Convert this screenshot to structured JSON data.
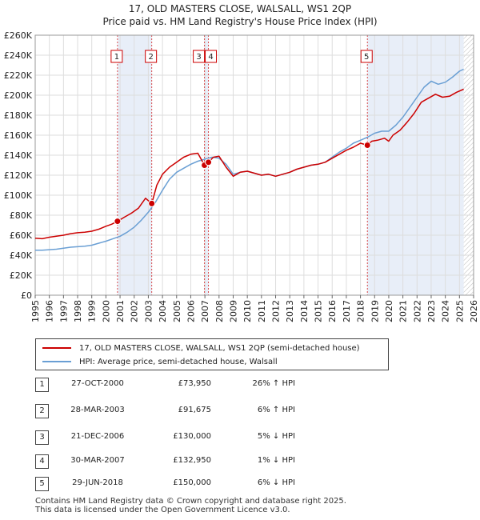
{
  "chart_data": {
    "type": "line",
    "title": "17, OLD MASTERS CLOSE, WALSALL, WS1 2QP",
    "subtitle": "Price paid vs. HM Land Registry's House Price Index (HPI)",
    "xlim": [
      1995,
      2026
    ],
    "ylim": [
      0,
      260000
    ],
    "x_ticks": [
      "1995",
      "1996",
      "1997",
      "1998",
      "1999",
      "2000",
      "2001",
      "2002",
      "2003",
      "2004",
      "2005",
      "2006",
      "2007",
      "2008",
      "2009",
      "2010",
      "2011",
      "2012",
      "2013",
      "2014",
      "2015",
      "2016",
      "2017",
      "2018",
      "2019",
      "2020",
      "2021",
      "2022",
      "2023",
      "2024",
      "2025",
      "2026"
    ],
    "y_ticks": [
      "£0",
      "£20K",
      "£40K",
      "£60K",
      "£80K",
      "£100K",
      "£120K",
      "£140K",
      "£160K",
      "£180K",
      "£200K",
      "£220K",
      "£240K",
      "£260K"
    ],
    "y_tick_values": [
      0,
      20000,
      40000,
      60000,
      80000,
      100000,
      120000,
      140000,
      160000,
      180000,
      200000,
      220000,
      240000,
      260000
    ],
    "grid": true,
    "legend_position": "bottom",
    "series": [
      {
        "name": "17, OLD MASTERS CLOSE, WALSALL, WS1 2QP (semi-detached house)",
        "color": "#cc0000",
        "x": [
          1995.0,
          1995.5,
          1996.0,
          1996.5,
          1997.0,
          1997.5,
          1998.0,
          1998.5,
          1999.0,
          1999.5,
          2000.0,
          2000.4,
          2000.82,
          2001.3,
          2001.8,
          2002.3,
          2002.8,
          2003.24,
          2003.6,
          2004.0,
          2004.5,
          2005.0,
          2005.5,
          2006.0,
          2006.5,
          2006.97,
          2007.25,
          2007.6,
          2008.0,
          2008.5,
          2009.0,
          2009.5,
          2010.0,
          2010.5,
          2011.0,
          2011.5,
          2012.0,
          2012.5,
          2013.0,
          2013.5,
          2014.0,
          2014.5,
          2015.0,
          2015.5,
          2016.0,
          2016.5,
          2017.0,
          2017.5,
          2018.0,
          2018.49,
          2018.8,
          2019.2,
          2019.7,
          2020.0,
          2020.3,
          2020.8,
          2021.3,
          2021.8,
          2022.3,
          2022.8,
          2023.3,
          2023.8,
          2024.3,
          2024.8,
          2025.3
        ],
        "values": [
          57000,
          56500,
          58000,
          59000,
          60000,
          61500,
          62500,
          63000,
          64000,
          66000,
          69000,
          71000,
          73950,
          78000,
          82000,
          87000,
          97000,
          91675,
          110000,
          121000,
          128000,
          133000,
          138000,
          141000,
          142000,
          130000,
          132950,
          138000,
          139000,
          128000,
          119000,
          123000,
          124000,
          122000,
          120000,
          121000,
          119000,
          121000,
          123000,
          126000,
          128000,
          130000,
          131000,
          133000,
          137000,
          141000,
          145000,
          148000,
          152000,
          150000,
          154000,
          155000,
          157000,
          154000,
          160000,
          165000,
          173000,
          182000,
          193000,
          197000,
          201000,
          198000,
          199000,
          203000,
          206000
        ]
      },
      {
        "name": "HPI: Average price, semi-detached house, Walsall",
        "color": "#6a9fd4",
        "x": [
          1995.0,
          1995.5,
          1996.0,
          1996.5,
          1997.0,
          1997.5,
          1998.0,
          1998.5,
          1999.0,
          1999.5,
          2000.0,
          2000.5,
          2001.0,
          2001.5,
          2002.0,
          2002.5,
          2003.0,
          2003.5,
          2004.0,
          2004.5,
          2005.0,
          2005.5,
          2006.0,
          2006.5,
          2007.0,
          2007.5,
          2008.0,
          2008.5,
          2009.0,
          2009.5,
          2010.0,
          2010.5,
          2011.0,
          2011.5,
          2012.0,
          2012.5,
          2013.0,
          2013.5,
          2014.0,
          2014.5,
          2015.0,
          2015.5,
          2016.0,
          2016.5,
          2017.0,
          2017.5,
          2018.0,
          2018.5,
          2019.0,
          2019.5,
          2020.0,
          2020.5,
          2021.0,
          2021.5,
          2022.0,
          2022.5,
          2023.0,
          2023.5,
          2024.0,
          2024.5,
          2025.0,
          2025.3
        ],
        "values": [
          45000,
          45000,
          45500,
          46000,
          47000,
          48000,
          48500,
          49000,
          50000,
          52000,
          54000,
          56500,
          59000,
          63000,
          68000,
          75000,
          83000,
          93000,
          105000,
          116000,
          123000,
          127000,
          131000,
          134000,
          136000,
          138000,
          137000,
          131000,
          121000,
          123000,
          124000,
          122000,
          120000,
          121000,
          119000,
          121000,
          123000,
          126000,
          128000,
          130000,
          131000,
          133000,
          138000,
          143000,
          147000,
          152000,
          155000,
          158000,
          162000,
          164000,
          164000,
          170000,
          178000,
          188000,
          198000,
          208000,
          214000,
          211000,
          213000,
          218000,
          224000,
          226000
        ]
      }
    ],
    "sale_markers": [
      {
        "label": "1",
        "x": 2000.82,
        "y": 73950
      },
      {
        "label": "2",
        "x": 2003.24,
        "y": 91675
      },
      {
        "label": "3",
        "x": 2006.97,
        "y": 130000
      },
      {
        "label": "4",
        "x": 2007.25,
        "y": 132950
      },
      {
        "label": "5",
        "x": 2018.49,
        "y": 150000
      }
    ],
    "shaded_periods": [
      [
        2000.82,
        2003.24
      ],
      [
        2006.97,
        2007.25
      ],
      [
        2018.49,
        2025.3
      ]
    ],
    "future_hatch_from": 2025.3
  },
  "legend": {
    "property_label": "17, OLD MASTERS CLOSE, WALSALL, WS1 2QP (semi-detached house)",
    "hpi_label": "HPI: Average price, semi-detached house, Walsall"
  },
  "sales": [
    {
      "num": "1",
      "date": "27-OCT-2000",
      "price": "£73,950",
      "hpi": "26% ↑ HPI"
    },
    {
      "num": "2",
      "date": "28-MAR-2003",
      "price": "£91,675",
      "hpi": "6% ↑ HPI"
    },
    {
      "num": "3",
      "date": "21-DEC-2006",
      "price": "£130,000",
      "hpi": "5% ↓ HPI"
    },
    {
      "num": "4",
      "date": "30-MAR-2007",
      "price": "£132,950",
      "hpi": "1% ↓ HPI"
    },
    {
      "num": "5",
      "date": "29-JUN-2018",
      "price": "£150,000",
      "hpi": "6% ↓ HPI"
    }
  ],
  "footer": {
    "line1": "Contains HM Land Registry data © Crown copyright and database right 2025.",
    "line2": "This data is licensed under the Open Government Licence v3.0."
  }
}
